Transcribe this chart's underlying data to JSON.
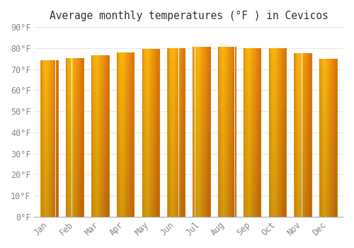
{
  "months": [
    "Jan",
    "Feb",
    "Mar",
    "Apr",
    "May",
    "Jun",
    "Jul",
    "Aug",
    "Sep",
    "Oct",
    "Nov",
    "Dec"
  ],
  "values": [
    74.3,
    75.2,
    76.6,
    78.1,
    79.5,
    80.1,
    80.6,
    80.6,
    80.1,
    80.0,
    77.5,
    75.0
  ],
  "title": "Average monthly temperatures (°F ) in Cevicos",
  "ylim": [
    0,
    90
  ],
  "yticks": [
    0,
    10,
    20,
    30,
    40,
    50,
    60,
    70,
    80,
    90
  ],
  "ytick_labels": [
    "0°F",
    "10°F",
    "20°F",
    "30°F",
    "40°F",
    "50°F",
    "60°F",
    "70°F",
    "80°F",
    "90°F"
  ],
  "background_color": "#FFFFFF",
  "grid_color": "#E8E8E8",
  "title_fontsize": 10.5,
  "tick_fontsize": 8.5,
  "bar_color_center": "#FFD060",
  "bar_color_edge": "#F5A800",
  "bar_color_bottom": "#F0A000",
  "bar_border_color": "#C8880A",
  "bar_width": 0.68
}
